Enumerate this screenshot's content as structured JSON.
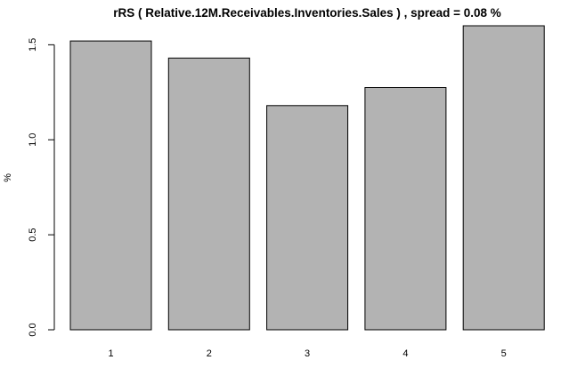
{
  "chart_data": {
    "type": "bar",
    "title": "rRS ( Relative.12M.Receivables.Inventories.Sales ) , spread = 0.08 %",
    "xlabel": "",
    "ylabel": "%",
    "categories": [
      "1",
      "2",
      "3",
      "4",
      "5"
    ],
    "values": [
      1.52,
      1.43,
      1.18,
      1.275,
      1.6
    ],
    "ylim": [
      0,
      1.6
    ],
    "yticks": [
      "0.0",
      "0.5",
      "1.0",
      "1.5"
    ],
    "bar_color": "#b3b3b3",
    "grid": false,
    "legend": "none"
  }
}
